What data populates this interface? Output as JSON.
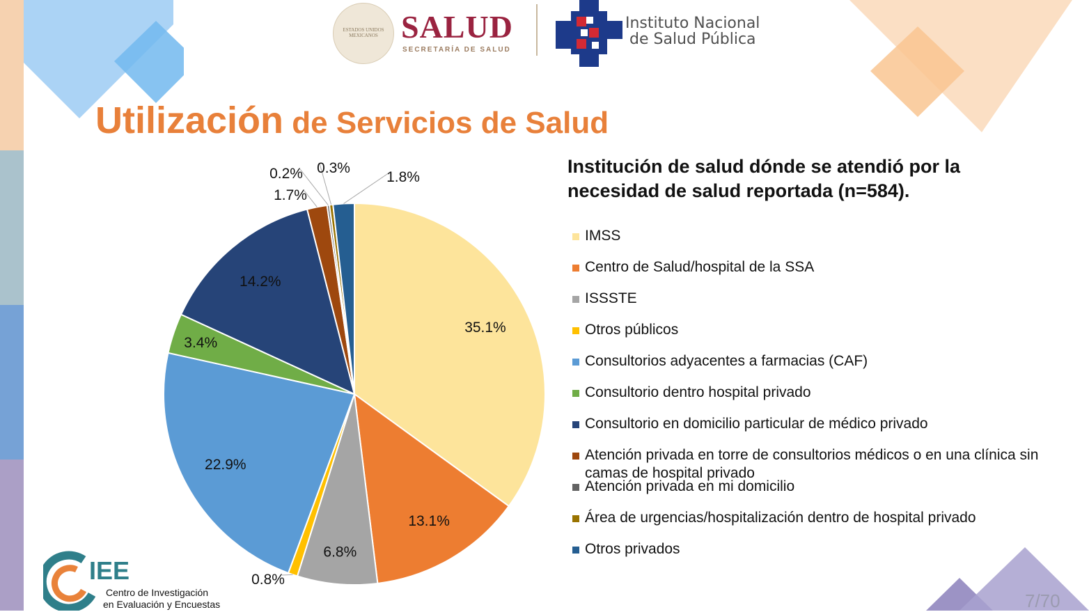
{
  "header": {
    "seal_text": "ESTADOS UNIDOS MEXICANOS",
    "salud": "SALUD",
    "salud_sub": "SECRETARÍA DE SALUD",
    "insp_line1": "Instituto Nacional",
    "insp_line2": "de Salud Pública"
  },
  "slide": {
    "title_word1": "Utilización",
    "title_rest": " de Servicios de Salud",
    "page_number": "7/70"
  },
  "chart_data": {
    "type": "pie",
    "title": "Institución de salud dónde se atendió por la necesidad de salud reportada (n=584).",
    "categories": [
      "IMSS",
      "Centro de Salud/hospital de la SSA",
      "ISSSTE",
      "Otros públicos",
      "Consultorios adyacentes a farmacias (CAF)",
      "Consultorio dentro hospital privado",
      " Consultorio en domicilio particular de médico privado",
      "Atención privada en torre de consultorios médicos o en una clínica sin camas de hospital privado",
      "Atención privada en mi domicilio",
      "Área de urgencias/hospitalización dentro de hospital privado",
      "Otros privados"
    ],
    "values": [
      35.1,
      13.1,
      6.8,
      0.8,
      22.9,
      3.4,
      14.2,
      1.7,
      0.2,
      0.3,
      1.8
    ],
    "labels": [
      "35.1%",
      "13.1%",
      "6.8%",
      "0.8%",
      "22.9%",
      "3.4%",
      "14.2%",
      "1.7%",
      "0.2%",
      "0.3%",
      "1.8%"
    ],
    "colors": [
      "#FDE49B",
      "#ED7D31",
      "#A5A5A5",
      "#FFC000",
      "#5B9BD5",
      "#70AD47",
      "#264478",
      "#9E480E",
      "#636363",
      "#997300",
      "#255E91"
    ],
    "legend_position": "right"
  },
  "footer_logo": {
    "abbr": "IEE",
    "line1": "Centro de Investigación",
    "line2": "en Evaluación y Encuestas"
  }
}
